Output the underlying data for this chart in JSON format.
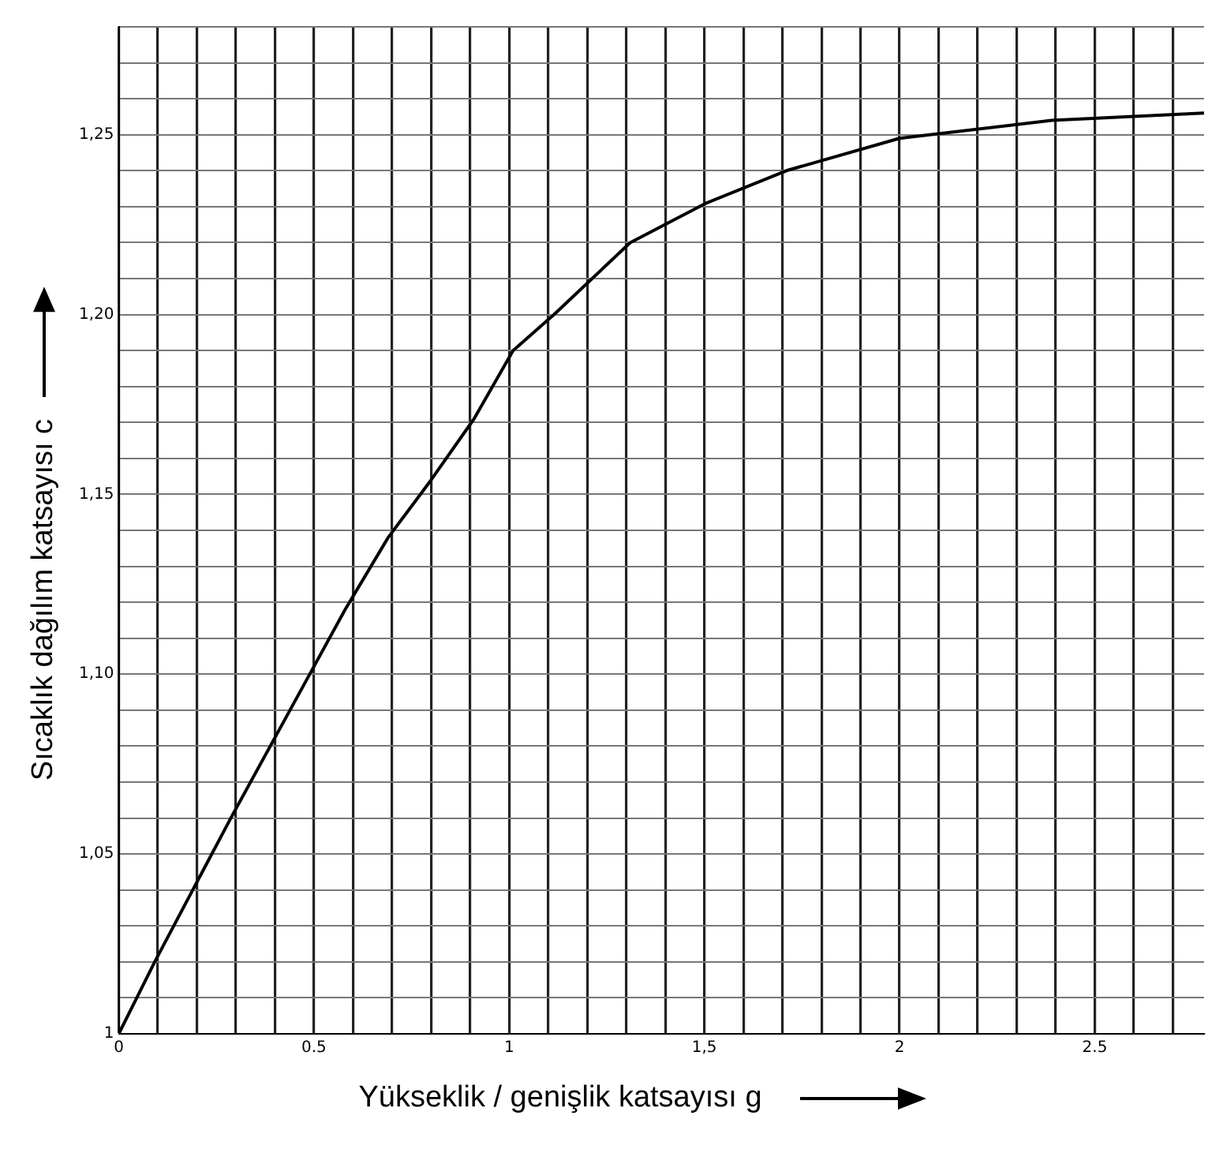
{
  "chart_data": {
    "type": "line",
    "xlabel": "Yükseklik / genişlik katsayısı g",
    "ylabel": "Sıcaklık dağılım katsayısı c",
    "x": [
      0,
      0.092,
      0.287,
      0.484,
      0.58,
      0.69,
      0.8,
      0.91,
      1.01,
      1.115,
      1.31,
      1.505,
      1.71,
      2.0,
      2.39,
      2.78
    ],
    "series": [
      {
        "color": "#000000",
        "values": [
          1.0,
          1.02,
          1.06,
          1.099,
          1.118,
          1.138,
          1.154,
          1.171,
          1.19,
          1.2,
          1.22,
          1.231,
          1.24,
          1.249,
          1.254,
          1.256
        ]
      }
    ],
    "xlim": [
      0,
      2.78
    ],
    "ylim": [
      1,
      1.28
    ],
    "xticks": [
      0,
      {
        "value": 0.1,
        "label": null
      },
      {
        "value": 0.2,
        "label": null
      },
      {
        "value": 0.3,
        "label": null
      },
      {
        "value": 0.4,
        "label": null
      },
      0.5,
      {
        "value": 0.6,
        "label": null
      },
      {
        "value": 0.7,
        "label": null
      },
      {
        "value": 0.8,
        "label": null
      },
      {
        "value": 0.9,
        "label": null
      },
      1,
      {
        "value": 1.1,
        "label": null
      },
      {
        "value": 1.2,
        "label": null
      },
      {
        "value": 1.3,
        "label": null
      },
      {
        "value": 1.4,
        "label": null
      },
      {
        "value": 1.5,
        "label": "1,5"
      },
      {
        "value": 1.6,
        "label": null
      },
      {
        "value": 1.7,
        "label": null
      },
      {
        "value": 1.8,
        "label": null
      },
      {
        "value": 1.9,
        "label": null
      },
      2,
      {
        "value": 2.1,
        "label": null
      },
      {
        "value": 2.2,
        "label": null
      },
      {
        "value": 2.3,
        "label": null
      },
      {
        "value": 2.4,
        "label": null
      },
      2.5,
      {
        "value": 2.6,
        "label": null
      },
      {
        "value": 2.7,
        "label": null
      }
    ],
    "yticks": [
      1,
      {
        "value": 1.01,
        "label": null
      },
      {
        "value": 1.02,
        "label": null
      },
      {
        "value": 1.03,
        "label": null
      },
      {
        "value": 1.04,
        "label": null
      },
      {
        "value": 1.05,
        "label": "1,05"
      },
      {
        "value": 1.06,
        "label": null
      },
      {
        "value": 1.07,
        "label": null
      },
      {
        "value": 1.08,
        "label": null
      },
      {
        "value": 1.09,
        "label": null
      },
      {
        "value": 1.1,
        "label": "1,10"
      },
      {
        "value": 1.11,
        "label": null
      },
      {
        "value": 1.12,
        "label": null
      },
      {
        "value": 1.13,
        "label": null
      },
      {
        "value": 1.14,
        "label": null
      },
      {
        "value": 1.15,
        "label": "1,15"
      },
      {
        "value": 1.16,
        "label": null
      },
      {
        "value": 1.17,
        "label": null
      },
      {
        "value": 1.18,
        "label": null
      },
      {
        "value": 1.19,
        "label": null
      },
      {
        "value": 1.2,
        "label": "1,20"
      },
      {
        "value": 1.21,
        "label": null
      },
      {
        "value": 1.22,
        "label": null
      },
      {
        "value": 1.23,
        "label": null
      },
      {
        "value": 1.24,
        "label": null
      },
      {
        "value": 1.25,
        "label": "1,25"
      },
      {
        "value": 1.26,
        "label": null
      },
      {
        "value": 1.27,
        "label": null
      },
      {
        "value": 1.28,
        "label": null
      }
    ],
    "grid": true,
    "marker": "none",
    "line_style": "solid",
    "legend": false
  }
}
